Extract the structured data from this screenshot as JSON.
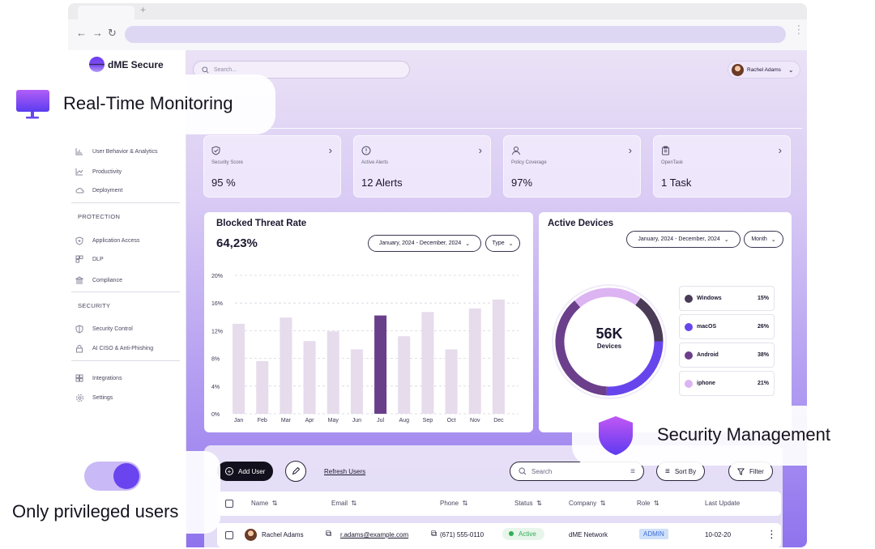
{
  "browser": {
    "new_tab": "+"
  },
  "brand": {
    "name": "dME Secure"
  },
  "search": {
    "placeholder": "Search..."
  },
  "user": {
    "name": "Rachel Adams"
  },
  "sidebar": {
    "items_top": [
      {
        "label": "User Behavior & Analytics",
        "icon": "bar-chart-icon"
      },
      {
        "label": "Productivity",
        "icon": "trend-chart-icon"
      },
      {
        "label": "Deployment",
        "icon": "cloud-icon"
      }
    ],
    "protection_title": "PROTECTION",
    "protection": [
      {
        "label": "Application Access",
        "icon": "shield-plus-icon"
      },
      {
        "label": "DLP",
        "icon": "grid-icon"
      },
      {
        "label": "Compliance",
        "icon": "bank-icon"
      }
    ],
    "security_title": "SECURITY",
    "security": [
      {
        "label": "Security Control",
        "icon": "shield-icon"
      },
      {
        "label": "AI CISO & Anti-Phishing",
        "icon": "lock-icon"
      }
    ],
    "bottom": [
      {
        "label": "Integrations",
        "icon": "apps-icon"
      },
      {
        "label": "Settings",
        "icon": "gear-icon"
      }
    ]
  },
  "cards": [
    {
      "label": "Security Score",
      "value": "95 %",
      "icon": "shield-check-icon"
    },
    {
      "label": "Active Alerts",
      "value": "12 Alerts",
      "icon": "alert-icon"
    },
    {
      "label": "Policy Coverage",
      "value": "97%",
      "icon": "user-icon"
    },
    {
      "label": "OpenTask",
      "value": "1 Task",
      "icon": "clipboard-icon"
    }
  ],
  "threat": {
    "title": "Blocked Threat Rate",
    "value": "64,23%",
    "date_range": "January, 2024 - December, 2024",
    "type_filter": "Type"
  },
  "devices": {
    "title": "Active Devices",
    "date_range": "January, 2024 - December, 2024",
    "period": "Month",
    "total": "56K",
    "total_label": "Devices"
  },
  "chart_data": [
    {
      "type": "bar",
      "categories": [
        "Jan",
        "Feb",
        "Mar",
        "Apr",
        "May",
        "Jun",
        "Jul",
        "Aug",
        "Sep",
        "Oct",
        "Nov",
        "Dec"
      ],
      "values": [
        13.0,
        7.6,
        13.9,
        10.5,
        11.9,
        9.3,
        14.2,
        11.2,
        14.7,
        9.3,
        15.2,
        16.5
      ],
      "highlight_index": 6,
      "ylim": [
        0,
        20
      ],
      "yticks": [
        "0%",
        "4%",
        "8%",
        "12%",
        "16%",
        "20%"
      ],
      "colors": {
        "bar": "#e6dcec",
        "highlight": "#6a3f8a",
        "grid": "#d7d2df"
      },
      "grid": true
    },
    {
      "type": "pie",
      "series": [
        {
          "name": "Windows",
          "value": 15,
          "label": "15%",
          "color": "#4a3b57"
        },
        {
          "name": "macOS",
          "value": 26,
          "label": "26%",
          "color": "#6745ec"
        },
        {
          "name": "Android",
          "value": 38,
          "label": "38%",
          "color": "#6b3f8b"
        },
        {
          "name": "iphone",
          "value": 21,
          "label": "21%",
          "color": "#dcb4f2"
        }
      ]
    }
  ],
  "table": {
    "add_user": "Add User",
    "refresh": "Refresh Users",
    "search_placeholder": "Search",
    "sort_by": "Sort By",
    "filter": "Filter",
    "headers": [
      "Name",
      "Email",
      "Phone",
      "Status",
      "Company",
      "Role",
      "Last Update"
    ],
    "row": {
      "name": "Rachel Adams",
      "email": "r.adams@example.com",
      "phone": "(671) 555-0110",
      "status": "Active",
      "company": "dME Network",
      "role": "ADMIN",
      "last_update": "10-02-20"
    }
  },
  "overlays": {
    "monitoring": "Real-Time Monitoring",
    "security": "Security Management",
    "privileged": "Only privileged users"
  },
  "colors": {
    "accent": "#6a44ef",
    "purple_dark": "#6a3f8a",
    "status_green": "#2fae55"
  }
}
